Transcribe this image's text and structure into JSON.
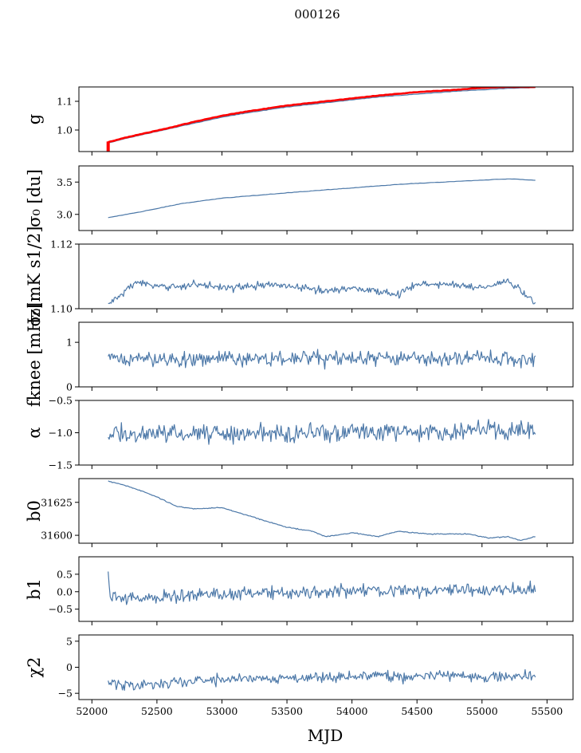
{
  "figure_title": "000126",
  "x_label": "MJD",
  "x_ticks": [
    52000,
    52500,
    53000,
    53500,
    54000,
    54500,
    55000,
    55500
  ],
  "chart_data": [
    {
      "type": "line",
      "ylabel_latex": "g",
      "ylabel_text": "g",
      "xlim": [
        51900,
        55700
      ],
      "ylim": [
        0.925,
        1.15
      ],
      "yticks": [
        1.0,
        1.1
      ],
      "ytick_labels": [
        "1.0",
        "1.1"
      ],
      "x_range": [
        52125,
        55410
      ],
      "series": [
        {
          "name": "g",
          "color": "#4c78a8",
          "x": [
            52125,
            52300,
            52600,
            52800,
            53000,
            53200,
            53500,
            53800,
            54000,
            54200,
            54500,
            54800,
            55000,
            55200,
            55410
          ],
          "values": [
            0.955,
            0.975,
            1.005,
            1.025,
            1.045,
            1.06,
            1.08,
            1.095,
            1.105,
            1.115,
            1.125,
            1.135,
            1.14,
            1.145,
            1.148
          ]
        },
        {
          "name": "g_ref",
          "color": "#ff0000",
          "x": [
            52125,
            52300,
            52600,
            52800,
            53000,
            53200,
            53500,
            53800,
            54000,
            54200,
            54500,
            54800,
            55000,
            55200,
            55410
          ],
          "values": [
            0.958,
            0.978,
            1.008,
            1.03,
            1.05,
            1.065,
            1.085,
            1.1,
            1.11,
            1.12,
            1.132,
            1.14,
            1.147,
            1.15,
            1.15
          ]
        }
      ]
    },
    {
      "type": "line",
      "ylabel_latex": "\\sigma_0 [du]",
      "ylabel_text": "σ₀ [du]",
      "xlim": [
        51900,
        55700
      ],
      "ylim": [
        2.75,
        3.75
      ],
      "yticks": [
        3.0,
        3.5
      ],
      "ytick_labels": [
        "3.0",
        "3.5"
      ],
      "x_range": [
        52125,
        55410
      ],
      "series": [
        {
          "name": "sigma0_du",
          "color": "#4c78a8",
          "x": [
            52125,
            52400,
            52700,
            53000,
            53300,
            53600,
            54000,
            54400,
            54800,
            55200,
            55410
          ],
          "values": [
            2.95,
            3.05,
            3.17,
            3.25,
            3.3,
            3.35,
            3.41,
            3.47,
            3.51,
            3.55,
            3.53
          ]
        }
      ]
    },
    {
      "type": "line",
      "ylabel_latex": "\\sigma_0 [mK s^{1/2}]",
      "ylabel_text": "σ₀[mK s1/2]",
      "xlim": [
        51900,
        55700
      ],
      "ylim": [
        1.1,
        1.12
      ],
      "yticks": [
        1.1,
        1.12
      ],
      "ytick_labels": [
        "1.10",
        "1.12"
      ],
      "x_range": [
        52125,
        55410
      ],
      "series": [
        {
          "name": "sigma0_mK",
          "color": "#4c78a8",
          "noise": 0.0008,
          "x": [
            52125,
            52200,
            52350,
            52500,
            52800,
            53100,
            53400,
            53800,
            54000,
            54350,
            54500,
            54800,
            55000,
            55200,
            55300,
            55410
          ],
          "values": [
            1.1015,
            1.1035,
            1.1085,
            1.1065,
            1.1075,
            1.1065,
            1.1075,
            1.1055,
            1.1065,
            1.1045,
            1.1075,
            1.1075,
            1.1065,
            1.1085,
            1.1055,
            1.1015
          ]
        }
      ]
    },
    {
      "type": "line",
      "ylabel_latex": "f_{knee} [mHz]",
      "ylabel_text": "fknee [mHz]",
      "xlim": [
        51900,
        55700
      ],
      "ylim": [
        0,
        1.45
      ],
      "yticks": [
        0,
        1
      ],
      "ytick_labels": [
        "0",
        "1"
      ],
      "x_range": [
        52125,
        55410
      ],
      "series": [
        {
          "name": "fknee",
          "color": "#4c78a8",
          "noise": 0.12,
          "x": [
            52125,
            53000,
            54000,
            55410
          ],
          "values": [
            0.62,
            0.63,
            0.64,
            0.62
          ]
        }
      ]
    },
    {
      "type": "line",
      "ylabel_latex": "\\alpha",
      "ylabel_text": "α",
      "xlim": [
        51900,
        55700
      ],
      "ylim": [
        -1.5,
        -0.5
      ],
      "yticks": [
        -1.5,
        -1.0,
        -0.5
      ],
      "ytick_labels": [
        "−1.5",
        "−1.0",
        "−0.5"
      ],
      "x_range": [
        52125,
        55410
      ],
      "series": [
        {
          "name": "alpha",
          "color": "#4c78a8",
          "noise": 0.1,
          "x": [
            52125,
            53000,
            54000,
            55410
          ],
          "values": [
            -1.02,
            -1.01,
            -0.99,
            -0.96
          ]
        }
      ]
    },
    {
      "type": "line",
      "ylabel_latex": "b_0",
      "ylabel_text": "b0",
      "xlim": [
        51900,
        55700
      ],
      "ylim": [
        31594,
        31643
      ],
      "yticks": [
        31600,
        31625
      ],
      "ytick_labels": [
        "31600",
        "31625"
      ],
      "x_range": [
        52125,
        55410
      ],
      "series": [
        {
          "name": "b0",
          "color": "#4c78a8",
          "noise": 0.25,
          "x": [
            52125,
            52250,
            52400,
            52500,
            52650,
            52800,
            53000,
            53200,
            53500,
            53700,
            53800,
            54000,
            54200,
            54350,
            54600,
            54900,
            55050,
            55200,
            55300,
            55410
          ],
          "values": [
            31641,
            31638,
            31633,
            31629,
            31622,
            31620,
            31621,
            31615,
            31606,
            31603,
            31599,
            31602,
            31599,
            31603,
            31601,
            31601,
            31598,
            31599,
            31596,
            31599
          ]
        }
      ]
    },
    {
      "type": "line",
      "ylabel_latex": "b_1",
      "ylabel_text": "b1",
      "xlim": [
        51900,
        55700
      ],
      "ylim": [
        -0.85,
        1.0
      ],
      "yticks": [
        -0.5,
        0.0,
        0.5
      ],
      "ytick_labels": [
        "−0.5",
        "0.0",
        "0.5"
      ],
      "x_range": [
        52125,
        55410
      ],
      "series": [
        {
          "name": "b1",
          "color": "#4c78a8",
          "noise": 0.13,
          "x": [
            52125,
            52140,
            52300,
            53000,
            54000,
            55410
          ],
          "values": [
            0.55,
            -0.15,
            -0.2,
            -0.05,
            0.02,
            0.05
          ]
        }
      ]
    },
    {
      "type": "line",
      "ylabel_latex": "\\chi^2",
      "ylabel_text": "χ2",
      "xlim": [
        51900,
        55700
      ],
      "ylim": [
        -6.2,
        6.2
      ],
      "yticks": [
        -5,
        0,
        5
      ],
      "ytick_labels": [
        "−5",
        "0",
        "5"
      ],
      "x_range": [
        52125,
        55410
      ],
      "series": [
        {
          "name": "chi2",
          "color": "#4c78a8",
          "noise": 0.75,
          "x": [
            52125,
            52300,
            53000,
            54000,
            55410
          ],
          "values": [
            -3.0,
            -3.5,
            -2.3,
            -1.7,
            -1.7
          ]
        }
      ]
    }
  ]
}
